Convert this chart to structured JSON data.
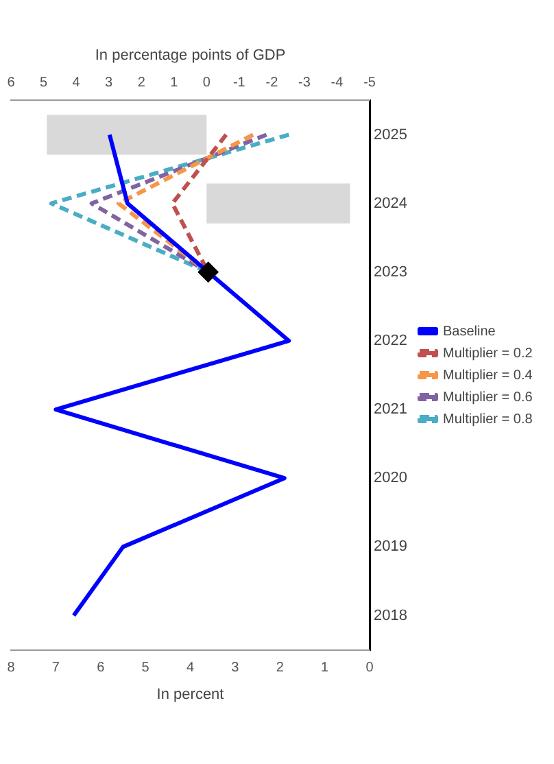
{
  "chart_data": {
    "type": "line",
    "orientation": "horizontal",
    "xlabel": "In percent",
    "x2label": "In percentage points of GDP",
    "categories": [
      "2025",
      "2024",
      "2023",
      "2022",
      "2021",
      "2020",
      "2019",
      "2018"
    ],
    "xlim": [
      8,
      0
    ],
    "xticks": [
      8,
      7,
      6,
      5,
      4,
      3,
      2,
      1,
      0
    ],
    "x2lim": [
      6,
      -5
    ],
    "x2ticks": [
      6,
      5,
      4,
      3,
      2,
      1,
      0,
      -1,
      -2,
      -3,
      -4,
      -5
    ],
    "grid": false,
    "legend": "right",
    "series": [
      {
        "name": "Baseline",
        "color": "#0000ff",
        "line_style": "solid",
        "marker": "none",
        "values": [
          5.8,
          5.4,
          3.6,
          1.8,
          7.0,
          1.9,
          5.5,
          6.6
        ]
      },
      {
        "name": "Multiplier = 0.2",
        "color": "#c0504d",
        "line_style": "dashed",
        "marker": "none",
        "values": [
          3.2,
          4.4,
          3.6,
          null,
          null,
          null,
          null,
          null
        ]
      },
      {
        "name": "Multiplier = 0.4",
        "color": "#f79646",
        "line_style": "dashed",
        "marker": "none",
        "values": [
          2.6,
          5.6,
          3.6,
          null,
          null,
          null,
          null,
          null
        ]
      },
      {
        "name": "Multiplier = 0.6",
        "color": "#8064a2",
        "line_style": "dashed",
        "marker": "none",
        "values": [
          2.3,
          6.2,
          3.6,
          null,
          null,
          null,
          null,
          null
        ]
      },
      {
        "name": "Multiplier = 0.8",
        "color": "#4bacc6",
        "line_style": "dashed",
        "marker": "none",
        "values": [
          1.8,
          7.1,
          3.6,
          null,
          null,
          null,
          null,
          null
        ]
      },
      {
        "type": "scatter",
        "color": "#000000",
        "marker": "diamond",
        "values": [
          null,
          null,
          3.6,
          null,
          null,
          null,
          null,
          null
        ]
      },
      {
        "type": "bar",
        "axis": "x2",
        "color": "#d9d9d9",
        "values": [
          4.9,
          -4.4,
          null,
          null,
          null,
          null,
          null,
          null
        ]
      }
    ]
  }
}
